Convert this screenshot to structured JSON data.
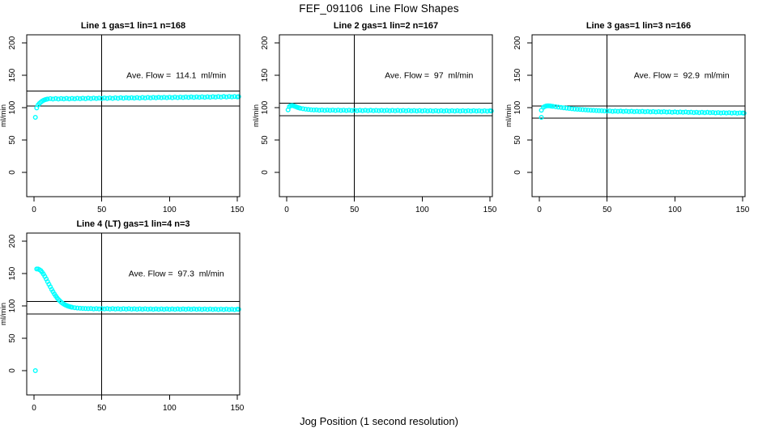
{
  "window": {
    "title": "FEF_091106  Line Flow Shapes"
  },
  "xlabel": "Jog Position (1 second resolution)",
  "accent_color": "#00FFFF",
  "axis_color": "#000000",
  "chart_data": [
    {
      "type": "scatter",
      "title": "Line 1 gas=1 lin=1 n=168",
      "ylabel": "ml/min",
      "annotation": "Ave. Flow =  114.1  ml/min",
      "ave_flow": 114.1,
      "ref_lines": [
        125.5,
        102.7
      ],
      "vline_x": 50,
      "x_ticks": [
        0,
        50,
        100,
        150
      ],
      "y_ticks": [
        0,
        50,
        100,
        150,
        200
      ],
      "xlim": [
        -5.5,
        152
      ],
      "ylim": [
        -37.5,
        212.5
      ],
      "grid": false,
      "points": [
        [
          1,
          85
        ],
        [
          2,
          99.5
        ],
        [
          3,
          104
        ],
        [
          4,
          106.5
        ],
        [
          5,
          108.5
        ],
        [
          6,
          110
        ],
        [
          7,
          111.3
        ],
        [
          8,
          112.2
        ],
        [
          9,
          112.8
        ],
        [
          10,
          113.2
        ],
        [
          12,
          113.9
        ],
        [
          14,
          113.2
        ],
        [
          16,
          114
        ],
        [
          18,
          113.3
        ],
        [
          20,
          114.1
        ],
        [
          22,
          113.4
        ],
        [
          24,
          114.2
        ],
        [
          26,
          113.5
        ],
        [
          28,
          114.3
        ],
        [
          30,
          113.6
        ],
        [
          32,
          114.4
        ],
        [
          34,
          113.7
        ],
        [
          36,
          114.5
        ],
        [
          38,
          113.8
        ],
        [
          40,
          114.6
        ],
        [
          42,
          113.9
        ],
        [
          44,
          114.7
        ],
        [
          46,
          114
        ],
        [
          48,
          114.8
        ],
        [
          50,
          114.1
        ],
        [
          52,
          114.9
        ],
        [
          54,
          114.2
        ],
        [
          56,
          115
        ],
        [
          58,
          114.3
        ],
        [
          60,
          115.1
        ],
        [
          62,
          114.4
        ],
        [
          64,
          115.2
        ],
        [
          66,
          114.5
        ],
        [
          68,
          115.3
        ],
        [
          70,
          114.6
        ],
        [
          72,
          115.4
        ],
        [
          74,
          114.7
        ],
        [
          76,
          115.5
        ],
        [
          78,
          114.8
        ],
        [
          80,
          115.6
        ],
        [
          82,
          114.9
        ],
        [
          84,
          115.7
        ],
        [
          86,
          115
        ],
        [
          88,
          115.8
        ],
        [
          90,
          115.1
        ],
        [
          92,
          115.9
        ],
        [
          94,
          115.2
        ],
        [
          96,
          116
        ],
        [
          98,
          115.3
        ],
        [
          100,
          116.1
        ],
        [
          102,
          115.4
        ],
        [
          104,
          116.2
        ],
        [
          106,
          115.5
        ],
        [
          108,
          116.3
        ],
        [
          110,
          115.6
        ],
        [
          112,
          116.4
        ],
        [
          114,
          115.7
        ],
        [
          116,
          116.5
        ],
        [
          118,
          115.8
        ],
        [
          120,
          116.6
        ],
        [
          122,
          115.9
        ],
        [
          124,
          116.7
        ],
        [
          126,
          116
        ],
        [
          128,
          116.8
        ],
        [
          130,
          116.1
        ],
        [
          132,
          116.9
        ],
        [
          134,
          116.2
        ],
        [
          136,
          117
        ],
        [
          138,
          116.3
        ],
        [
          140,
          117.1
        ],
        [
          142,
          116.4
        ],
        [
          144,
          117.2
        ],
        [
          146,
          116.5
        ],
        [
          148,
          117.3
        ],
        [
          150,
          116.6
        ],
        [
          151,
          117
        ]
      ]
    },
    {
      "type": "scatter",
      "title": "Line 2 gas=1 lin=2 n=167",
      "ylabel": "ml/min",
      "annotation": "Ave. Flow =  97  ml/min",
      "ave_flow": 97,
      "ref_lines": [
        106.7,
        87.3
      ],
      "vline_x": 50,
      "x_ticks": [
        0,
        50,
        100,
        150
      ],
      "y_ticks": [
        0,
        50,
        100,
        150,
        200
      ],
      "xlim": [
        -5.5,
        152
      ],
      "ylim": [
        -37.5,
        212.5
      ],
      "grid": false,
      "points": [
        [
          1,
          96.5
        ],
        [
          2,
          101.5
        ],
        [
          3,
          103
        ],
        [
          4,
          103.2
        ],
        [
          5,
          102.8
        ],
        [
          6,
          102
        ],
        [
          7,
          101.2
        ],
        [
          8,
          100.4
        ],
        [
          9,
          99.7
        ],
        [
          10,
          99.1
        ],
        [
          12,
          98.2
        ],
        [
          14,
          97.6
        ],
        [
          16,
          97.1
        ],
        [
          18,
          96.7
        ],
        [
          20,
          96.4
        ],
        [
          22,
          96.5
        ],
        [
          24,
          95.9
        ],
        [
          26,
          96.4
        ],
        [
          28,
          95.8
        ],
        [
          30,
          96.3
        ],
        [
          32,
          95.7
        ],
        [
          34,
          96.2
        ],
        [
          36,
          95.6
        ],
        [
          38,
          96.2
        ],
        [
          40,
          95.6
        ],
        [
          42,
          96.1
        ],
        [
          44,
          95.5
        ],
        [
          46,
          96.1
        ],
        [
          48,
          95.5
        ],
        [
          50,
          96
        ],
        [
          52,
          95.4
        ],
        [
          54,
          96
        ],
        [
          56,
          95.4
        ],
        [
          58,
          95.9
        ],
        [
          60,
          95.3
        ],
        [
          62,
          95.9
        ],
        [
          64,
          95.3
        ],
        [
          66,
          95.8
        ],
        [
          68,
          95.2
        ],
        [
          70,
          95.8
        ],
        [
          72,
          95.2
        ],
        [
          74,
          95.7
        ],
        [
          76,
          95.1
        ],
        [
          78,
          95.7
        ],
        [
          80,
          95.1
        ],
        [
          82,
          95.7
        ],
        [
          84,
          95.1
        ],
        [
          86,
          95.6
        ],
        [
          88,
          95
        ],
        [
          90,
          95.6
        ],
        [
          92,
          95
        ],
        [
          94,
          95.5
        ],
        [
          96,
          94.9
        ],
        [
          98,
          95.5
        ],
        [
          100,
          94.9
        ],
        [
          102,
          95.5
        ],
        [
          104,
          94.9
        ],
        [
          106,
          95.4
        ],
        [
          108,
          94.8
        ],
        [
          110,
          95.4
        ],
        [
          112,
          94.8
        ],
        [
          114,
          95.4
        ],
        [
          116,
          94.8
        ],
        [
          118,
          95.3
        ],
        [
          120,
          94.7
        ],
        [
          122,
          95.3
        ],
        [
          124,
          94.7
        ],
        [
          126,
          95.3
        ],
        [
          128,
          94.7
        ],
        [
          130,
          95.2
        ],
        [
          132,
          94.6
        ],
        [
          134,
          95.2
        ],
        [
          136,
          94.6
        ],
        [
          138,
          95.2
        ],
        [
          140,
          94.6
        ],
        [
          142,
          95.1
        ],
        [
          144,
          94.5
        ],
        [
          146,
          95.1
        ],
        [
          148,
          94.5
        ],
        [
          150,
          95.1
        ],
        [
          151,
          94.9
        ]
      ]
    },
    {
      "type": "scatter",
      "title": "Line 3 gas=1 lin=3 n=166",
      "ylabel": "ml/min",
      "annotation": "Ave. Flow =  92.9  ml/min",
      "ave_flow": 92.9,
      "ref_lines": [
        102.2,
        83.6
      ],
      "vline_x": 50,
      "x_ticks": [
        0,
        50,
        100,
        150
      ],
      "y_ticks": [
        0,
        50,
        100,
        150,
        200
      ],
      "xlim": [
        -5.5,
        152
      ],
      "ylim": [
        -37.5,
        212.5
      ],
      "grid": false,
      "points": [
        [
          1.5,
          96
        ],
        [
          1.5,
          85
        ],
        [
          3,
          100.5
        ],
        [
          4,
          101.8
        ],
        [
          5,
          102.5
        ],
        [
          6,
          102.8
        ],
        [
          7,
          102.8
        ],
        [
          8,
          102.6
        ],
        [
          9,
          102.3
        ],
        [
          10,
          102
        ],
        [
          12,
          101.4
        ],
        [
          14,
          100.8
        ],
        [
          16,
          100.2
        ],
        [
          18,
          99.7
        ],
        [
          20,
          99.2
        ],
        [
          22,
          98.7
        ],
        [
          24,
          98.3
        ],
        [
          26,
          97.9
        ],
        [
          28,
          97.5
        ],
        [
          30,
          97.2
        ],
        [
          32,
          96.9
        ],
        [
          34,
          96.6
        ],
        [
          36,
          96.3
        ],
        [
          38,
          96
        ],
        [
          40,
          95.8
        ],
        [
          42,
          95.5
        ],
        [
          44,
          95.3
        ],
        [
          46,
          95.1
        ],
        [
          48,
          94.9
        ],
        [
          50,
          94.7
        ],
        [
          52,
          94.9
        ],
        [
          54,
          94.3
        ],
        [
          56,
          94.8
        ],
        [
          58,
          94.2
        ],
        [
          60,
          94.6
        ],
        [
          62,
          94
        ],
        [
          64,
          94.5
        ],
        [
          66,
          93.9
        ],
        [
          68,
          94.4
        ],
        [
          70,
          93.8
        ],
        [
          72,
          94.3
        ],
        [
          74,
          93.7
        ],
        [
          76,
          94.2
        ],
        [
          78,
          93.6
        ],
        [
          80,
          94
        ],
        [
          82,
          93.4
        ],
        [
          84,
          93.9
        ],
        [
          86,
          93.3
        ],
        [
          88,
          93.8
        ],
        [
          90,
          93.2
        ],
        [
          92,
          93.7
        ],
        [
          94,
          93.1
        ],
        [
          96,
          93.5
        ],
        [
          98,
          92.9
        ],
        [
          100,
          93.4
        ],
        [
          102,
          92.8
        ],
        [
          104,
          93.3
        ],
        [
          106,
          92.7
        ],
        [
          108,
          93.2
        ],
        [
          110,
          92.6
        ],
        [
          112,
          93
        ],
        [
          114,
          92.4
        ],
        [
          116,
          92.9
        ],
        [
          118,
          92.3
        ],
        [
          120,
          92.8
        ],
        [
          122,
          92.2
        ],
        [
          124,
          92.7
        ],
        [
          126,
          92.1
        ],
        [
          128,
          92.5
        ],
        [
          130,
          91.9
        ],
        [
          132,
          92.4
        ],
        [
          134,
          91.8
        ],
        [
          136,
          92.3
        ],
        [
          138,
          91.7
        ],
        [
          140,
          92.2
        ],
        [
          142,
          91.6
        ],
        [
          144,
          92
        ],
        [
          146,
          91.4
        ],
        [
          148,
          91.9
        ],
        [
          150,
          91.8
        ],
        [
          151,
          91.6
        ]
      ]
    },
    {
      "type": "scatter",
      "title": "Line 4 (LT) gas=1 lin=4 n=3",
      "ylabel": "ml/min",
      "annotation": "Ave. Flow =  97.3  ml/min",
      "ave_flow": 97.3,
      "ref_lines": [
        107.0,
        87.6
      ],
      "vline_x": 50,
      "x_ticks": [
        0,
        50,
        100,
        150
      ],
      "y_ticks": [
        0,
        50,
        100,
        150,
        200
      ],
      "xlim": [
        -5.5,
        152
      ],
      "ylim": [
        -37.5,
        212.5
      ],
      "grid": false,
      "points": [
        [
          1,
          0
        ],
        [
          2,
          157
        ],
        [
          3,
          157
        ],
        [
          4,
          156
        ],
        [
          5,
          154.5
        ],
        [
          6,
          152
        ],
        [
          7,
          149
        ],
        [
          8,
          145.5
        ],
        [
          9,
          141.5
        ],
        [
          10,
          137.5
        ],
        [
          11,
          133.5
        ],
        [
          12,
          129.5
        ],
        [
          13,
          125.5
        ],
        [
          14,
          122
        ],
        [
          15,
          118.5
        ],
        [
          16,
          115.5
        ],
        [
          17,
          112.5
        ],
        [
          18,
          110
        ],
        [
          19,
          107.8
        ],
        [
          20,
          105.8
        ],
        [
          21,
          104.2
        ],
        [
          22,
          102.8
        ],
        [
          23,
          101.6
        ],
        [
          24,
          100.6
        ],
        [
          25,
          99.8
        ],
        [
          26,
          99.1
        ],
        [
          27,
          98.5
        ],
        [
          28,
          98
        ],
        [
          30,
          97.3
        ],
        [
          32,
          96.8
        ],
        [
          34,
          96.4
        ],
        [
          36,
          96.1
        ],
        [
          38,
          95.9
        ],
        [
          40,
          95.7
        ],
        [
          42,
          95.9
        ],
        [
          44,
          95.3
        ],
        [
          46,
          95.8
        ],
        [
          48,
          95.2
        ],
        [
          50,
          95.8
        ],
        [
          52,
          95.2
        ],
        [
          54,
          95.7
        ],
        [
          56,
          95.1
        ],
        [
          58,
          95.7
        ],
        [
          60,
          95.1
        ],
        [
          62,
          95.6
        ],
        [
          64,
          95
        ],
        [
          66,
          95.6
        ],
        [
          68,
          95
        ],
        [
          70,
          95.6
        ],
        [
          72,
          95
        ],
        [
          74,
          95.5
        ],
        [
          76,
          94.9
        ],
        [
          78,
          95.5
        ],
        [
          80,
          94.9
        ],
        [
          82,
          95.5
        ],
        [
          84,
          94.9
        ],
        [
          86,
          95.4
        ],
        [
          88,
          94.8
        ],
        [
          90,
          95.4
        ],
        [
          92,
          94.8
        ],
        [
          94,
          95.4
        ],
        [
          96,
          94.8
        ],
        [
          98,
          95.3
        ],
        [
          100,
          94.7
        ],
        [
          102,
          95.3
        ],
        [
          104,
          94.7
        ],
        [
          106,
          95.3
        ],
        [
          108,
          94.7
        ],
        [
          110,
          95.2
        ],
        [
          112,
          94.6
        ],
        [
          114,
          95.2
        ],
        [
          116,
          94.6
        ],
        [
          118,
          95.2
        ],
        [
          120,
          94.6
        ],
        [
          122,
          95.1
        ],
        [
          124,
          94.5
        ],
        [
          126,
          95.1
        ],
        [
          128,
          94.5
        ],
        [
          130,
          95.1
        ],
        [
          132,
          94.5
        ],
        [
          134,
          95
        ],
        [
          136,
          94.4
        ],
        [
          138,
          95
        ],
        [
          140,
          94.4
        ],
        [
          142,
          95
        ],
        [
          144,
          94.4
        ],
        [
          146,
          94.9
        ],
        [
          148,
          94.3
        ],
        [
          150,
          94.9
        ],
        [
          151,
          94.7
        ]
      ]
    }
  ]
}
